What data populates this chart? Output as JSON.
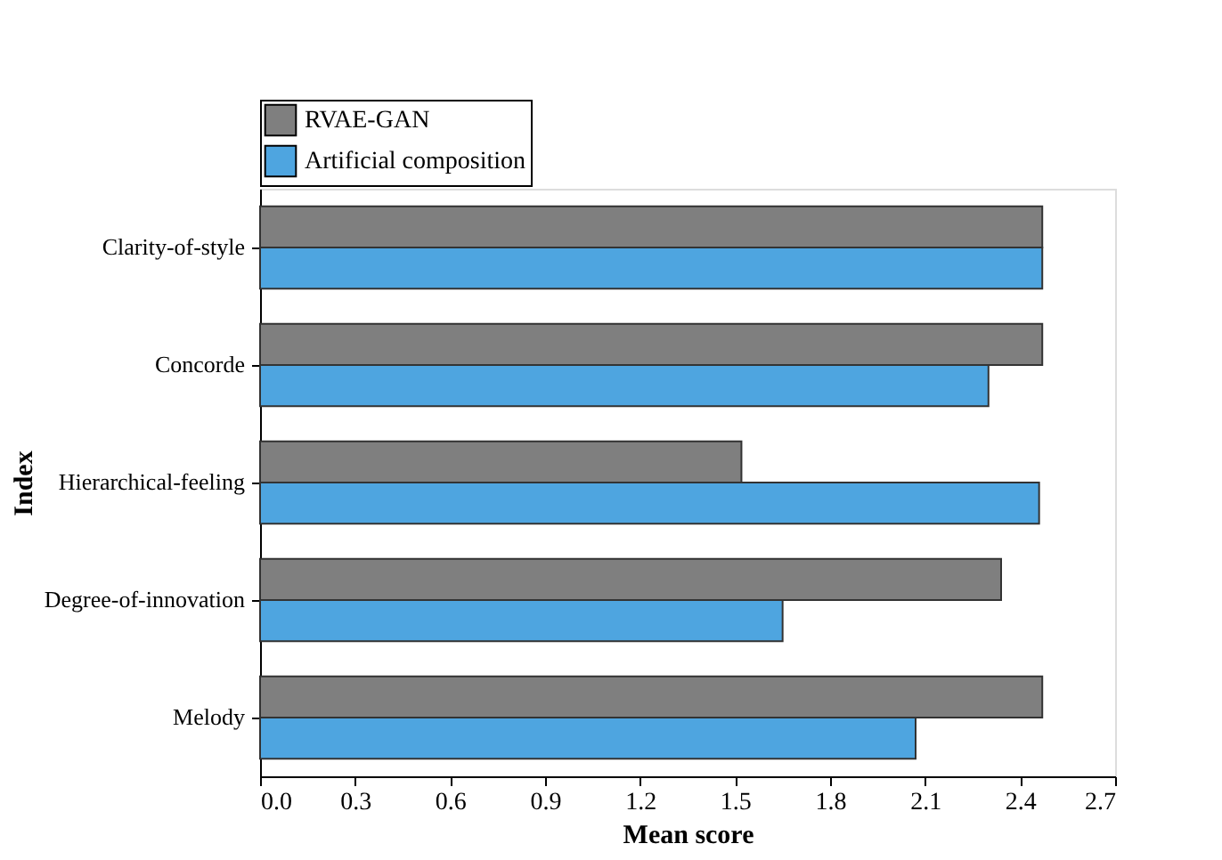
{
  "chart_data": {
    "type": "bar",
    "orientation": "horizontal",
    "xlabel": "Mean score",
    "ylabel": "Index",
    "categories": [
      "Clarity-of-style",
      "Concorde",
      "Hierarchical-feeling",
      "Degree-of-innovation",
      "Melody"
    ],
    "series": [
      {
        "name": "RVAE-GAN",
        "color": "#7f7f7f",
        "values": [
          2.47,
          2.47,
          1.52,
          2.34,
          2.47
        ]
      },
      {
        "name": "Artificial composition",
        "color": "#4ea5e0",
        "values": [
          2.47,
          2.3,
          2.46,
          1.65,
          2.07
        ]
      }
    ],
    "xlim": [
      0,
      2.7
    ],
    "xticks": [
      {
        "value": 0,
        "label": "0.0"
      },
      0.3,
      0.6,
      0.9,
      1.2,
      1.5,
      1.8,
      2.1,
      2.4,
      2.7
    ],
    "grid": false,
    "legend": "top left"
  }
}
